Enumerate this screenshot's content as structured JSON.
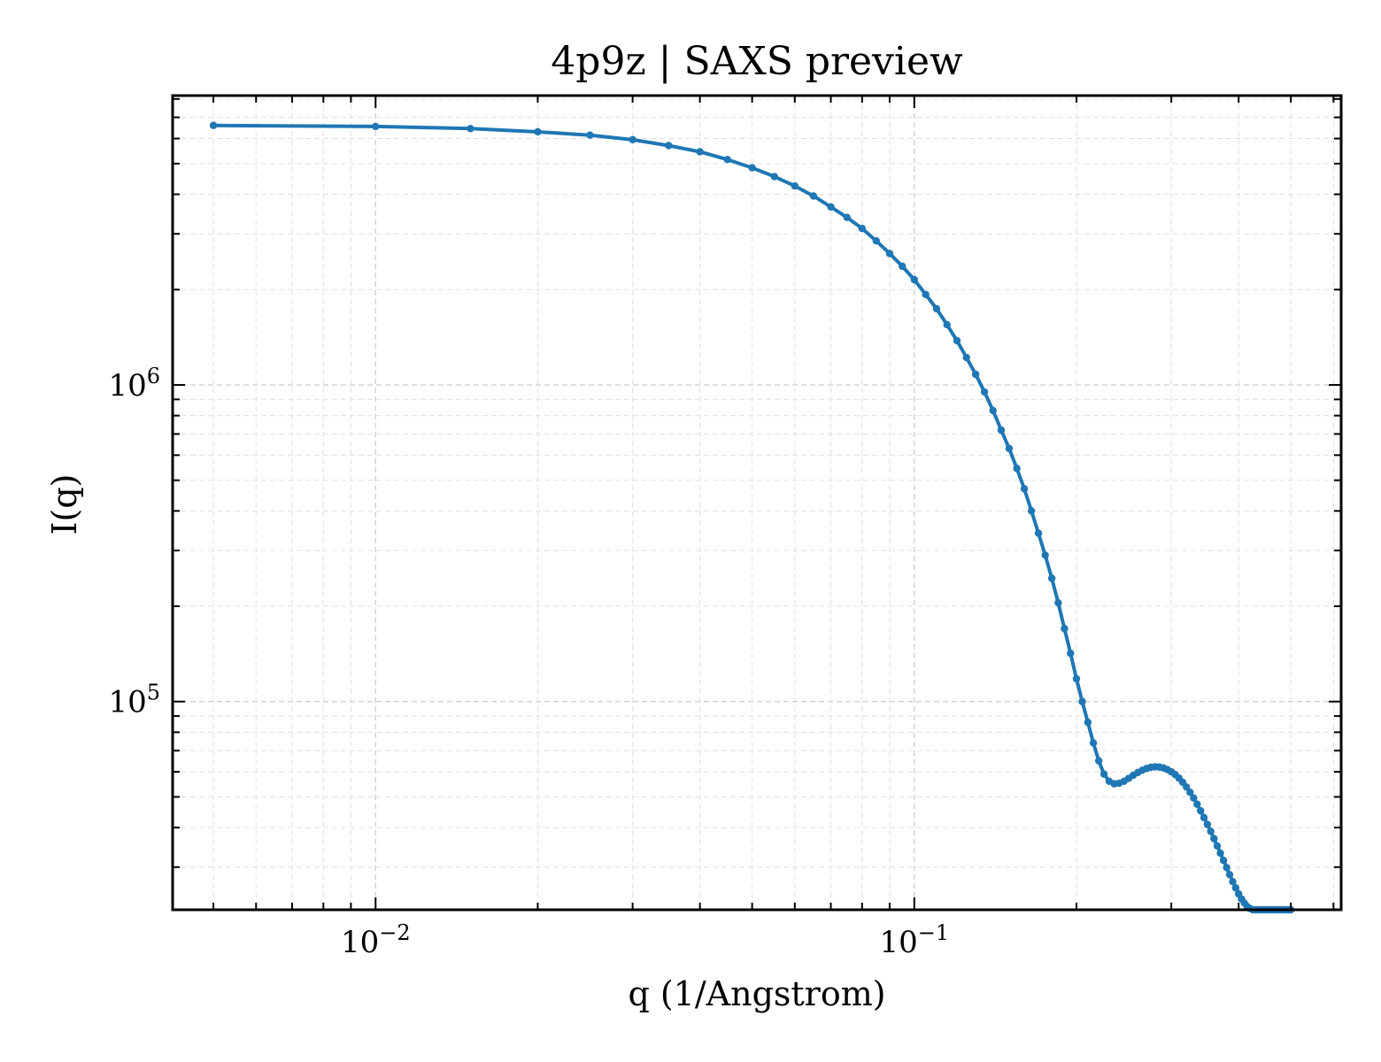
{
  "chart_data": {
    "type": "line",
    "title": "4p9z | SAXS preview",
    "xlabel": "q (1/Angstrom)",
    "ylabel": "I(q)",
    "xscale": "log",
    "yscale": "log",
    "xlim": [
      0.0042,
      0.62
    ],
    "ylim": [
      22000,
      8200000
    ],
    "grid": true,
    "legend": "none",
    "color": "#1f77b4",
    "x_major_ticks": [
      {
        "value": 0.01,
        "base": "10",
        "exp": "−2"
      },
      {
        "value": 0.1,
        "base": "10",
        "exp": "−1"
      }
    ],
    "y_major_ticks": [
      {
        "value": 100000,
        "base": "10",
        "exp": "5"
      },
      {
        "value": 1000000,
        "base": "10",
        "exp": "6"
      }
    ],
    "series": [
      {
        "x": [
          0.005,
          0.01,
          0.015,
          0.02,
          0.025,
          0.03,
          0.035,
          0.04,
          0.045,
          0.05,
          0.055,
          0.06,
          0.065,
          0.07,
          0.075,
          0.08,
          0.085,
          0.09,
          0.095,
          0.1,
          0.105,
          0.11,
          0.115,
          0.12,
          0.125,
          0.13,
          0.135,
          0.14,
          0.145,
          0.15,
          0.155,
          0.16,
          0.165,
          0.17,
          0.175,
          0.18,
          0.185,
          0.19,
          0.195,
          0.2,
          0.205,
          0.21,
          0.215,
          0.22,
          0.225,
          0.23,
          0.235,
          0.24,
          0.245,
          0.25,
          0.255,
          0.26,
          0.265,
          0.27,
          0.275,
          0.28,
          0.285,
          0.29,
          0.295,
          0.3,
          0.305,
          0.31,
          0.315,
          0.32,
          0.325,
          0.33,
          0.335,
          0.34,
          0.345,
          0.35,
          0.355,
          0.36,
          0.365,
          0.37,
          0.375,
          0.38,
          0.385,
          0.39,
          0.395,
          0.4,
          0.405,
          0.41,
          0.415,
          0.42,
          0.425,
          0.43,
          0.435,
          0.44,
          0.445,
          0.45,
          0.455,
          0.46,
          0.465,
          0.47,
          0.475,
          0.48,
          0.485,
          0.49,
          0.495,
          0.5
        ],
        "y": [
          6600000,
          6550000,
          6450000,
          6300000,
          6150000,
          5950000,
          5700000,
          5450000,
          5150000,
          4850000,
          4550000,
          4250000,
          3950000,
          3650000,
          3380000,
          3120000,
          2850000,
          2600000,
          2370000,
          2150000,
          1930000,
          1740000,
          1550000,
          1380000,
          1220000,
          1080000,
          950000,
          830000,
          720000,
          630000,
          545000,
          470000,
          400000,
          340000,
          290000,
          245000,
          205000,
          170000,
          142000,
          118000,
          100000,
          86000,
          74000,
          65000,
          59000,
          56000,
          55000,
          55200,
          56000,
          57200,
          58500,
          59700,
          60700,
          61500,
          62000,
          62200,
          62100,
          61700,
          61000,
          60000,
          58800,
          57300,
          55600,
          53700,
          51700,
          49600,
          47400,
          45200,
          43000,
          40900,
          38900,
          36900,
          35000,
          33200,
          31500,
          29900,
          28400,
          27000,
          25800,
          24700,
          23800,
          23100,
          22500,
          22200,
          22000,
          22000,
          22000,
          22000,
          22000,
          22000,
          22000,
          22000,
          22000,
          22000,
          22000,
          22000,
          22000,
          22000,
          22000,
          22000
        ]
      }
    ]
  }
}
